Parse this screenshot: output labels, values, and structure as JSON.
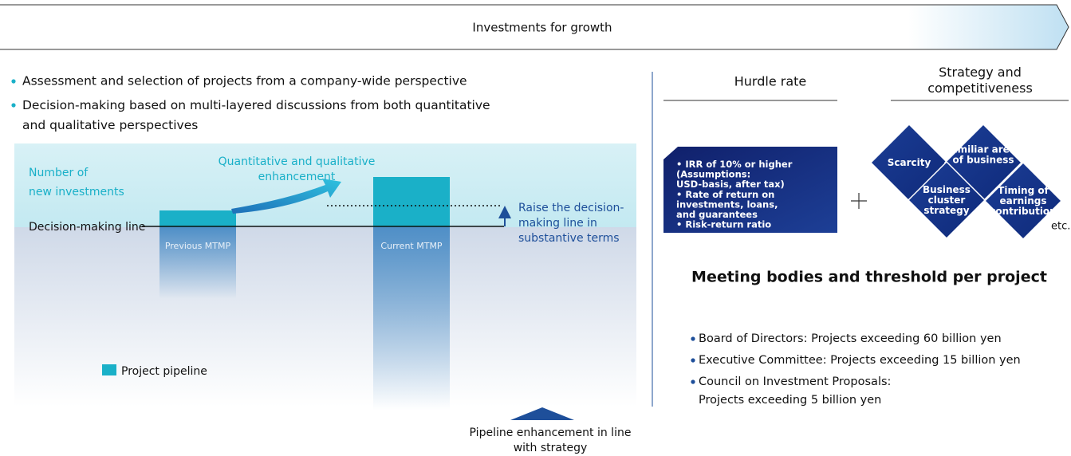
{
  "banner": {
    "title": "Investments for growth"
  },
  "left": {
    "bullets": [
      "Assessment and selection of projects from a company-wide perspective",
      [
        "Decision-making based on multi-layered discussions from both quantitative",
        "and qualitative perspectives"
      ]
    ],
    "diagram": {
      "y_label": [
        "Number of",
        "new investments"
      ],
      "enhancement_label": [
        "Quantitative and qualitative",
        "enhancement"
      ],
      "decision_line_label": "Decision-making line",
      "previous_bar": "Previous MTMP",
      "current_bar": "Current MTMP",
      "raise_label": [
        "Raise the decision-",
        "making line in",
        "substantive terms"
      ],
      "legend": "Project pipeline",
      "footer": [
        "Pipeline enhancement in line",
        "with strategy"
      ]
    }
  },
  "right": {
    "hurdle_rate": {
      "title": "Hurdle rate",
      "box": [
        "• IRR of 10% or higher",
        "(Assumptions:",
        "USD-basis, after tax)",
        "• Rate of return on",
        "investments, loans,",
        "and guarantees",
        "• Risk-return ratio"
      ]
    },
    "strategy": {
      "title": [
        "Strategy and",
        "competitiveness"
      ],
      "diamonds": [
        [
          "Scarcity"
        ],
        [
          "Familiar areas",
          "of business"
        ],
        [
          "Business",
          "cluster",
          "strategy"
        ],
        [
          "Timing of",
          "earnings",
          "contribution"
        ]
      ],
      "etc": "etc."
    },
    "meeting": {
      "title": "Meeting bodies and threshold per project",
      "bullets": [
        "Board of Directors: Projects exceeding 60 billion yen",
        "Executive Committee: Projects exceeding 15 billion yen",
        [
          "Council on Investment Proposals:",
          "Projects exceeding 5 billion yen"
        ]
      ]
    }
  }
}
